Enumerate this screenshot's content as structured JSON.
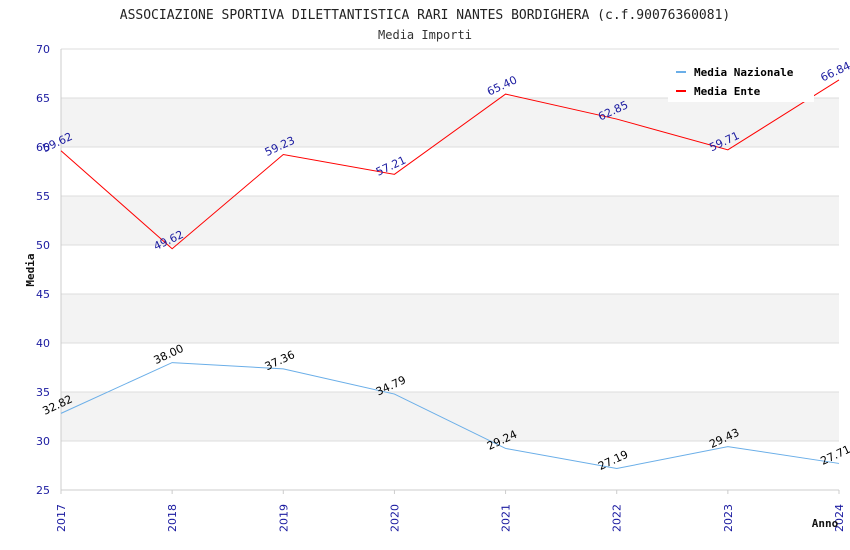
{
  "chart_data": {
    "type": "line",
    "title": "ASSOCIAZIONE SPORTIVA DILETTANTISTICA RARI NANTES BORDIGHERA (c.f.90076360081)",
    "subtitle": "Media Importi",
    "xlabel": "Anno",
    "ylabel": "Media",
    "categories": [
      "2017",
      "2018",
      "2019",
      "2020",
      "2021",
      "2022",
      "2023",
      "2024"
    ],
    "ylim": [
      25,
      70
    ],
    "yticks": [
      "25",
      "30",
      "35",
      "40",
      "45",
      "50",
      "55",
      "60",
      "65",
      "70"
    ],
    "grid": true,
    "legend_position": "top-right",
    "series": [
      {
        "name": "Media Nazionale",
        "color": "#6aaee8",
        "label_color": "#000000",
        "values": [
          32.82,
          38.0,
          37.36,
          34.79,
          29.24,
          27.19,
          29.43,
          27.71
        ],
        "labels": [
          "32.82",
          "38.00",
          "37.36",
          "34.79",
          "29.24",
          "27.19",
          "29.43",
          "27.71"
        ]
      },
      {
        "name": "Media Ente",
        "color": "#ff0000",
        "label_color": "#1a1aa0",
        "values": [
          59.62,
          49.62,
          59.23,
          57.21,
          65.4,
          62.85,
          59.71,
          66.84
        ],
        "labels": [
          "59.62",
          "49.62",
          "59.23",
          "57.21",
          "65.40",
          "62.85",
          "59.71",
          "66.84"
        ]
      }
    ]
  }
}
